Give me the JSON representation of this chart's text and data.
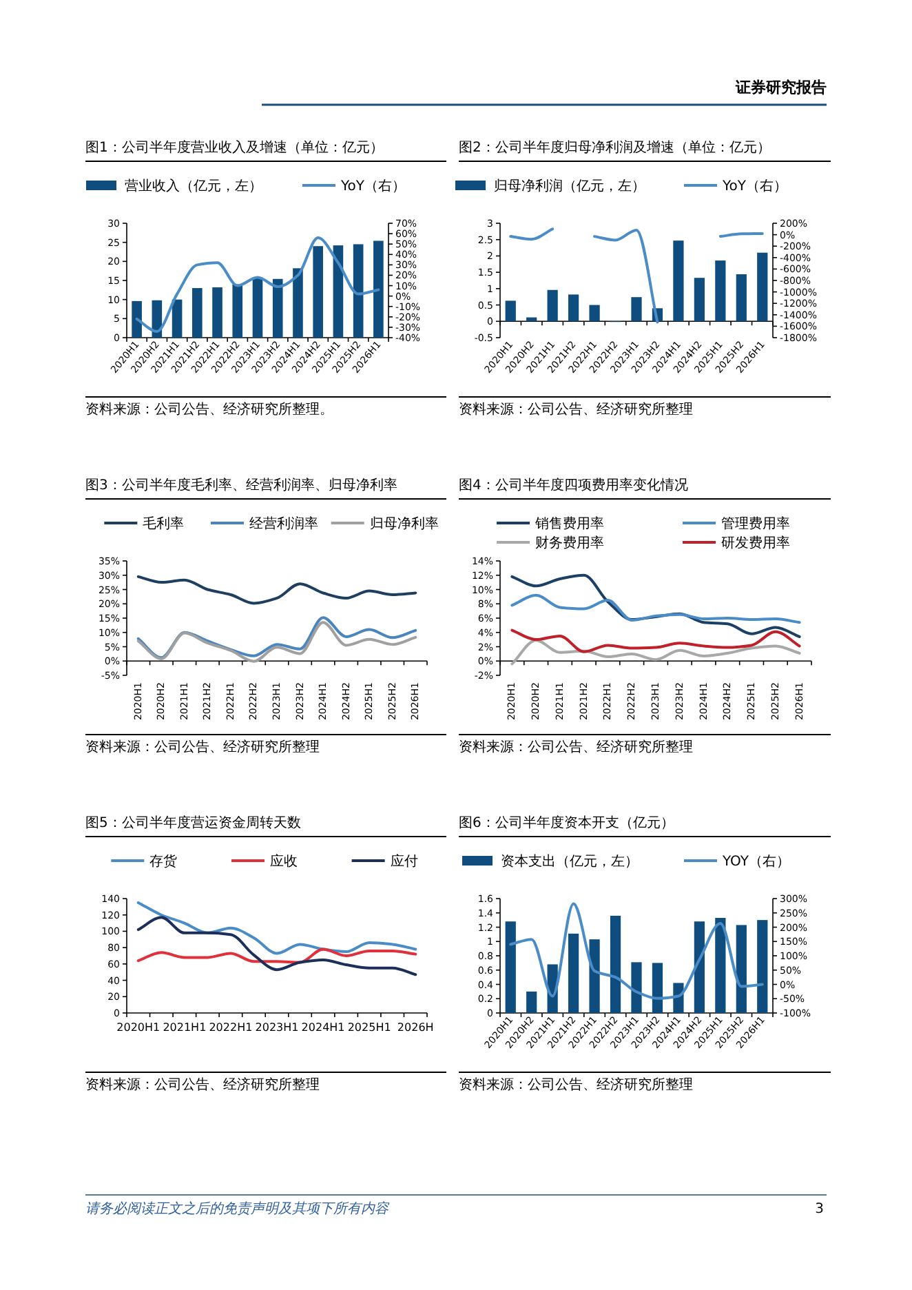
{
  "chart_data": [
    {
      "type": "other",
      "annotations": [
        "证券研究报告",
        "请务必阅读正文之后的免责声明及其项下所有内容",
        "3"
      ]
    },
    {
      "type": "bar",
      "title": "图1：公司半年度营业收入及增速（单位：亿元）",
      "legend": "top",
      "categories": [
        "2020H1",
        "2020H2",
        "2021H1",
        "2021H2",
        "2022H1",
        "2022H2",
        "2023H1",
        "2023H2",
        "2024H1",
        "2024H2",
        "2025H1",
        "2025H2",
        "2026H1"
      ],
      "series": [
        {
          "name": "营业收入（亿元，左）",
          "type": "bar",
          "color": "#0e4d7e",
          "values": [
            9.6,
            9.8,
            10.0,
            13.0,
            13.2,
            14.0,
            15.8,
            15.4,
            18.2,
            24.0,
            24.2,
            24.5,
            25.4
          ]
        },
        {
          "name": "YoY（右）",
          "type": "line",
          "axis": "y2",
          "color": "#4a8cc7",
          "values": [
            -22,
            -34,
            2,
            30,
            32,
            10,
            18,
            9,
            20,
            56,
            32,
            2,
            6
          ]
        }
      ],
      "ylim": [
        0,
        30
      ],
      "yticks": [
        0,
        5,
        10,
        15,
        20,
        25,
        30
      ],
      "y2lim": [
        -40,
        70
      ],
      "y2ticks": [
        {
          "value": -40,
          "label": "-40%"
        },
        {
          "value": -30,
          "label": "-30%"
        },
        {
          "value": -20,
          "label": "-20%"
        },
        {
          "value": -10,
          "label": "-10%"
        },
        {
          "value": 0,
          "label": "0%"
        },
        {
          "value": 10,
          "label": "10%"
        },
        {
          "value": 20,
          "label": "20%"
        },
        {
          "value": 30,
          "label": "30%"
        },
        {
          "value": 40,
          "label": "40%"
        },
        {
          "value": 50,
          "label": "50%"
        },
        {
          "value": 60,
          "label": "60%"
        },
        {
          "value": 70,
          "label": "70%"
        }
      ],
      "annotations": [
        "资料来源：公司公告、经济研究所整理。"
      ]
    },
    {
      "type": "bar",
      "title": "图2：公司半年度归母净利润及增速（单位：亿元）",
      "legend": "top",
      "categories": [
        "2020H1",
        "2020H2",
        "2021H1",
        "2021H2",
        "2022H1",
        "2022H2",
        "2023H1",
        "2023H2",
        "2024H1",
        "2024H2",
        "2025H1",
        "2025H2",
        "2026H1"
      ],
      "series": [
        {
          "name": "归母净利润（亿元，左）",
          "type": "bar",
          "color": "#0e4d7e",
          "values": [
            0.63,
            0.12,
            0.96,
            0.82,
            0.5,
            -0.02,
            0.74,
            0.4,
            2.47,
            1.33,
            1.86,
            1.44,
            2.1
          ]
        },
        {
          "name": "YoY（右）",
          "type": "line",
          "axis": "y2",
          "color": "#4a8cc7",
          "values": [
            -30,
            -80,
            100,
            null,
            -30,
            -95,
            80,
            -1530,
            null,
            null,
            -30,
            15,
            20
          ]
        }
      ],
      "ylim": [
        -0.5,
        3
      ],
      "yticks": [
        -0.5,
        0,
        0.5,
        1,
        1.5,
        2,
        2.5,
        3
      ],
      "y2lim": [
        -1800,
        200
      ],
      "y2ticks": [
        {
          "value": -1800,
          "label": "-1800%"
        },
        {
          "value": -1600,
          "label": "-1600%"
        },
        {
          "value": -1400,
          "label": "-1400%"
        },
        {
          "value": -1200,
          "label": "-1200%"
        },
        {
          "value": -1000,
          "label": "-1000%"
        },
        {
          "value": -800,
          "label": "-800%"
        },
        {
          "value": -600,
          "label": "-600%"
        },
        {
          "value": -400,
          "label": "-400%"
        },
        {
          "value": -200,
          "label": "-200%"
        },
        {
          "value": 0,
          "label": "0%"
        },
        {
          "value": 200,
          "label": "200%"
        }
      ],
      "annotations": [
        "资料来源：公司公告、经济研究所整理"
      ]
    },
    {
      "type": "line",
      "title": "图3：公司半年度毛利率、经营利润率、归母净利率",
      "legend": "top",
      "categories": [
        "2020H1",
        "2020H2",
        "2021H1",
        "2021H2",
        "2022H1",
        "2022H2",
        "2023H1",
        "2023H2",
        "2024H1",
        "2024H2",
        "2025H1",
        "2025H2",
        "2026H1"
      ],
      "series": [
        {
          "name": "毛利率",
          "color": "#1f3f60",
          "values": [
            29.5,
            27.5,
            28.3,
            25.0,
            23.2,
            20.2,
            22.0,
            27.0,
            23.8,
            22.0,
            24.5,
            23.2,
            23.8
          ]
        },
        {
          "name": "经营利润率",
          "color": "#4a86bd",
          "values": [
            7.8,
            1.2,
            10.0,
            7.0,
            4.0,
            1.8,
            5.8,
            4.2,
            15.2,
            8.5,
            11.0,
            8.2,
            10.7
          ]
        },
        {
          "name": "归母净利率",
          "color": "#a0a0a0",
          "values": [
            7.0,
            0.8,
            9.8,
            6.3,
            3.7,
            -0.1,
            4.8,
            2.6,
            13.5,
            5.5,
            7.6,
            5.8,
            8.3
          ]
        }
      ],
      "ylim": [
        -5,
        35
      ],
      "yticks": [
        {
          "value": -5,
          "label": "-5%"
        },
        {
          "value": 0,
          "label": "0%"
        },
        {
          "value": 5,
          "label": "5%"
        },
        {
          "value": 10,
          "label": "10%"
        },
        {
          "value": 15,
          "label": "15%"
        },
        {
          "value": 20,
          "label": "20%"
        },
        {
          "value": 25,
          "label": "25%"
        },
        {
          "value": 30,
          "label": "30%"
        },
        {
          "value": 35,
          "label": "35%"
        }
      ],
      "annotations": [
        "资料来源：公司公告、经济研究所整理"
      ]
    },
    {
      "type": "line",
      "title": "图4：公司半年度四项费用率变化情况",
      "legend": "top",
      "categories": [
        "2020H1",
        "2020H2",
        "2021H1",
        "2021H2",
        "2022H1",
        "2022H2",
        "2023H1",
        "2023H2",
        "2024H1",
        "2024H2",
        "2025H1",
        "2025H2",
        "2026H1"
      ],
      "series": [
        {
          "name": "销售费用率",
          "color": "#1c3f66",
          "values": [
            11.8,
            10.5,
            11.5,
            12.0,
            8.3,
            5.8,
            6.2,
            6.6,
            5.4,
            5.2,
            3.8,
            4.7,
            3.4
          ]
        },
        {
          "name": "管理费用率",
          "color": "#4a8cc7",
          "values": [
            7.8,
            9.2,
            7.5,
            7.3,
            8.5,
            5.7,
            6.3,
            6.5,
            5.9,
            6.0,
            5.8,
            5.9,
            5.4
          ]
        },
        {
          "name": "财务费用率",
          "color": "#a8a8a8",
          "values": [
            -0.4,
            2.9,
            1.2,
            1.4,
            0.6,
            1.0,
            0.2,
            1.5,
            0.7,
            1.1,
            1.8,
            2.1,
            1.1
          ]
        },
        {
          "name": "研发费用率",
          "color": "#c0202a",
          "values": [
            4.3,
            3.0,
            3.5,
            1.3,
            2.2,
            1.8,
            1.9,
            2.5,
            2.1,
            1.9,
            2.2,
            4.1,
            2.1
          ]
        }
      ],
      "ylim": [
        -2,
        14
      ],
      "yticks": [
        {
          "value": -2,
          "label": "-2%"
        },
        {
          "value": 0,
          "label": "0%"
        },
        {
          "value": 2,
          "label": "2%"
        },
        {
          "value": 4,
          "label": "4%"
        },
        {
          "value": 6,
          "label": "6%"
        },
        {
          "value": 8,
          "label": "8%"
        },
        {
          "value": 10,
          "label": "10%"
        },
        {
          "value": 12,
          "label": "12%"
        },
        {
          "value": 14,
          "label": "14%"
        }
      ],
      "annotations": [
        "资料来源：公司公告、经济研究所整理"
      ]
    },
    {
      "type": "line",
      "title": "图5：公司半年度营运资金周转天数",
      "legend": "top",
      "categories": [
        "2020H1",
        null,
        "2021H1",
        null,
        "2022H1",
        null,
        "2023H1",
        null,
        "2024H1",
        null,
        "2025H1",
        null,
        "2026H"
      ],
      "series": [
        {
          "name": "存货",
          "color": "#4a8cc7",
          "values": [
            135,
            120,
            110,
            98,
            104,
            92,
            73,
            84,
            78,
            75,
            86,
            84,
            78
          ]
        },
        {
          "name": "应收",
          "color": "#e0303a",
          "values": [
            64,
            74,
            68,
            68,
            73,
            63,
            63,
            62,
            78,
            70,
            76,
            76,
            72
          ]
        },
        {
          "name": "应付",
          "color": "#1c2e5a",
          "values": [
            102,
            117,
            98,
            98,
            96,
            71,
            53,
            62,
            65,
            59,
            55,
            55,
            47
          ]
        }
      ],
      "ylim": [
        0,
        140
      ],
      "yticks": [
        0,
        20,
        40,
        60,
        80,
        100,
        120,
        140
      ],
      "annotations": [
        "资料来源：公司公告、经济研究所整理"
      ]
    },
    {
      "type": "bar",
      "title": "图6：公司半年度资本开支（亿元）",
      "legend": "top",
      "categories": [
        "2020H1",
        "2020H2",
        "2021H1",
        "2021H2",
        "2022H1",
        "2022H2",
        "2023H1",
        "2023H2",
        "2024H1",
        "2024H2",
        "2025H1",
        "2025H2",
        "2026H1"
      ],
      "series": [
        {
          "name": "资本支出（亿元，左）",
          "type": "bar",
          "color": "#0e4d7e",
          "values": [
            1.28,
            0.3,
            0.68,
            1.11,
            1.03,
            1.36,
            0.71,
            0.7,
            0.42,
            1.28,
            1.33,
            1.23,
            1.3
          ]
        },
        {
          "name": "YOY（右）",
          "type": "line",
          "axis": "y2",
          "color": "#4a8cc7",
          "values": [
            140,
            157,
            -41,
            282,
            47,
            25,
            -26,
            -49,
            -41,
            87,
            213,
            -7,
            0
          ]
        }
      ],
      "ylim": [
        0,
        1.6
      ],
      "yticks": [
        0,
        0.2,
        0.4,
        0.6,
        0.8,
        1,
        1.2,
        1.4,
        1.6
      ],
      "y2lim": [
        -100,
        300
      ],
      "y2ticks": [
        {
          "value": -100,
          "label": "-100%"
        },
        {
          "value": -50,
          "label": "-50%"
        },
        {
          "value": 0,
          "label": "0%"
        },
        {
          "value": 50,
          "label": "50%"
        },
        {
          "value": 100,
          "label": "100%"
        },
        {
          "value": 150,
          "label": "150%"
        },
        {
          "value": 200,
          "label": "200%"
        },
        {
          "value": 250,
          "label": "250%"
        },
        {
          "value": 300,
          "label": "300%"
        }
      ],
      "annotations": [
        "资料来源：公司公告、经济研究所整理"
      ]
    }
  ]
}
